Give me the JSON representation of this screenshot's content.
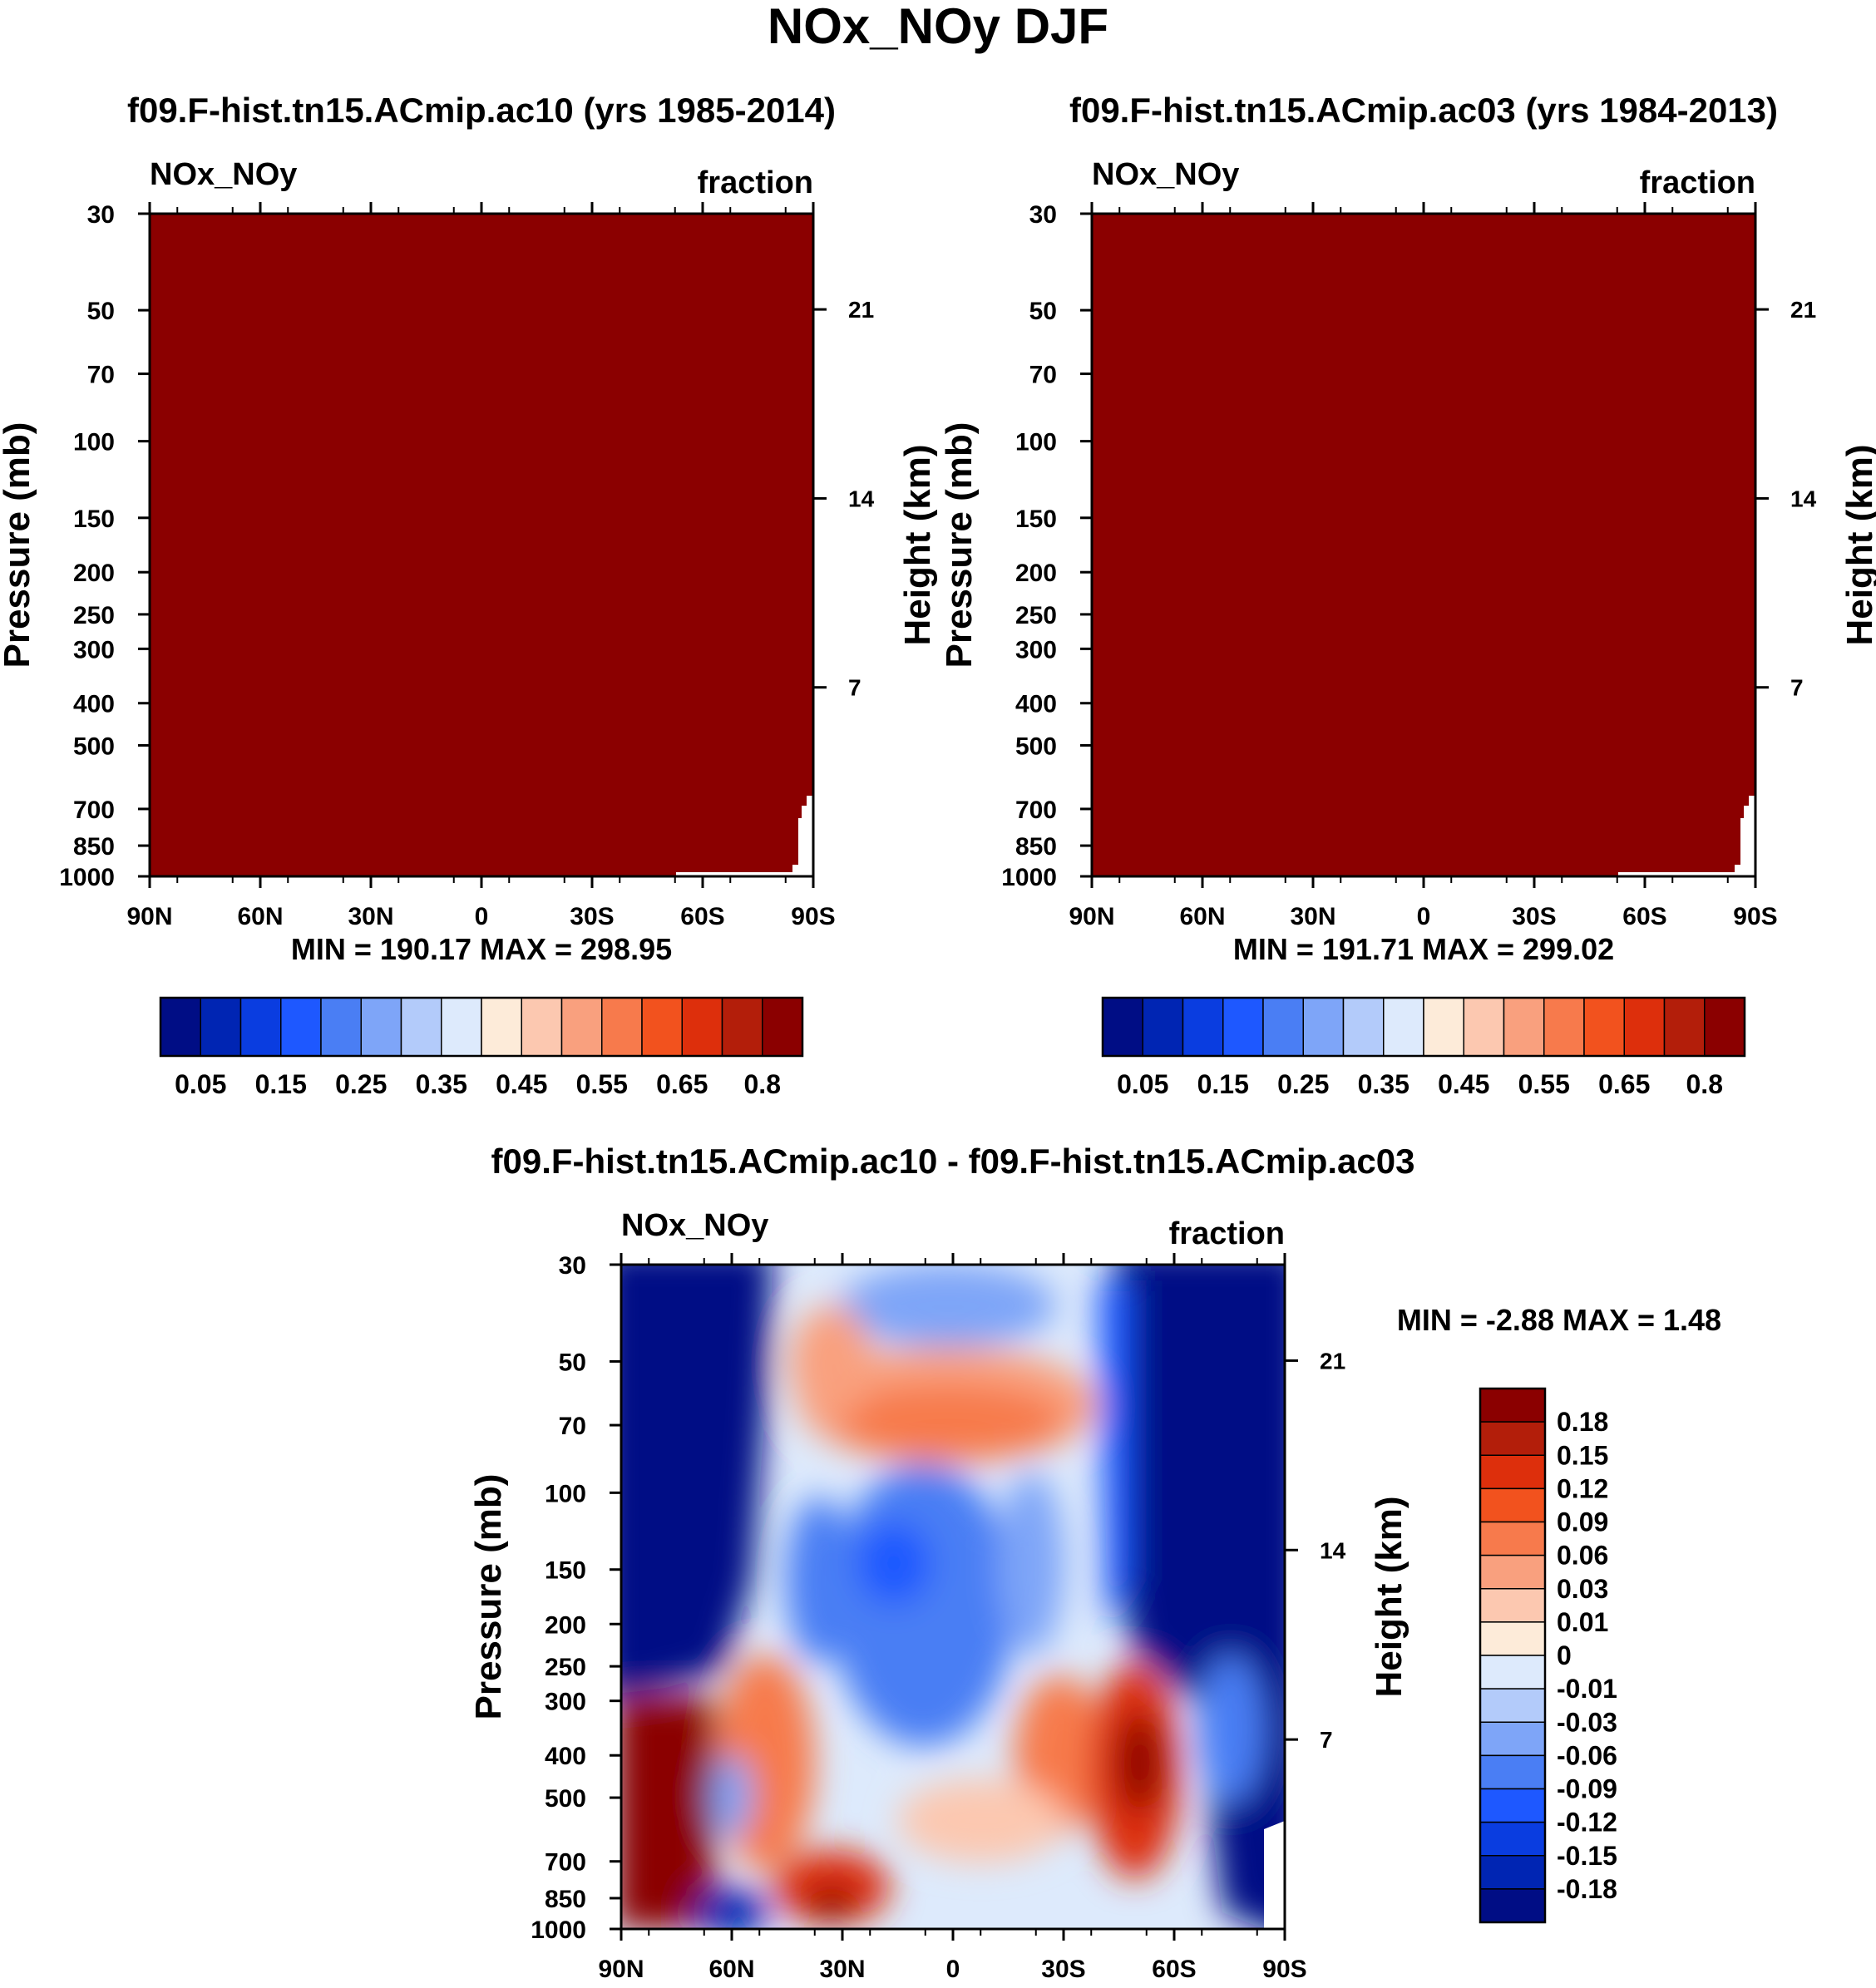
{
  "figure_title": "NOx_NOy DJF",
  "chart_data": [
    {
      "type": "heatmap",
      "panel": "top-left",
      "title": "f09.F-hist.tn15.ACmip.ac10 (yrs 1985-2014)",
      "variable": "NOx_NOy",
      "units": "fraction",
      "ylabel": "Pressure (mb)",
      "ylabel_right": "Height (km)",
      "xticks": [
        "90N",
        "60N",
        "30N",
        "0",
        "30S",
        "60S",
        "90S"
      ],
      "yticks": [
        "30",
        "50",
        "70",
        "100",
        "150",
        "200",
        "250",
        "300",
        "400",
        "500",
        "700",
        "850",
        "1000"
      ],
      "yticks_right": [
        "21",
        "14",
        "7"
      ],
      "stats": "MIN = 190.17  MAX = 298.95",
      "min": 190.17,
      "max": 298.95,
      "fill_color": "#8b0000",
      "colorbar_colors": [
        "#000d85",
        "#0025b3",
        "#0a3de0",
        "#1e58ff",
        "#4a7ef4",
        "#7ea5f8",
        "#b3cbfa",
        "#ddeafc",
        "#fdebd9",
        "#fcc8b0",
        "#f9a07e",
        "#f77a4c",
        "#f2521e",
        "#dd2f0c",
        "#b31e0a",
        "#8b0000"
      ],
      "colorbar_labels": [
        "0.05",
        "0.15",
        "0.25",
        "0.35",
        "0.45",
        "0.55",
        "0.65",
        "0.8"
      ]
    },
    {
      "type": "heatmap",
      "panel": "top-right",
      "title": "f09.F-hist.tn15.ACmip.ac03 (yrs 1984-2013)",
      "variable": "NOx_NOy",
      "units": "fraction",
      "ylabel": "Pressure (mb)",
      "ylabel_right": "Height (km)",
      "xticks": [
        "90N",
        "60N",
        "30N",
        "0",
        "30S",
        "60S",
        "90S"
      ],
      "yticks": [
        "30",
        "50",
        "70",
        "100",
        "150",
        "200",
        "250",
        "300",
        "400",
        "500",
        "700",
        "850",
        "1000"
      ],
      "yticks_right": [
        "21",
        "14",
        "7"
      ],
      "stats": "MIN = 191.71  MAX = 299.02",
      "min": 191.71,
      "max": 299.02,
      "fill_color": "#8b0000",
      "colorbar_colors": [
        "#000d85",
        "#0025b3",
        "#0a3de0",
        "#1e58ff",
        "#4a7ef4",
        "#7ea5f8",
        "#b3cbfa",
        "#ddeafc",
        "#fdebd9",
        "#fcc8b0",
        "#f9a07e",
        "#f77a4c",
        "#f2521e",
        "#dd2f0c",
        "#b31e0a",
        "#8b0000"
      ],
      "colorbar_labels": [
        "0.05",
        "0.15",
        "0.25",
        "0.35",
        "0.45",
        "0.55",
        "0.65",
        "0.8"
      ]
    },
    {
      "type": "heatmap",
      "panel": "bottom",
      "title": "f09.F-hist.tn15.ACmip.ac10 - f09.F-hist.tn15.ACmip.ac03",
      "variable": "NOx_NOy",
      "units": "fraction",
      "ylabel": "Pressure (mb)",
      "ylabel_right": "Height (km)",
      "xticks": [
        "90N",
        "60N",
        "30N",
        "0",
        "30S",
        "60S",
        "90S"
      ],
      "yticks": [
        "30",
        "50",
        "70",
        "100",
        "150",
        "200",
        "250",
        "300",
        "400",
        "500",
        "700",
        "850",
        "1000"
      ],
      "yticks_right": [
        "21",
        "14",
        "7"
      ],
      "stats": "MIN =  -2.88  MAX =   1.48",
      "min": -2.88,
      "max": 1.48,
      "levels": [
        "0.18",
        "0.15",
        "0.12",
        "0.09",
        "0.06",
        "0.03",
        "0.01",
        "0",
        "-0.01",
        "-0.03",
        "-0.06",
        "-0.09",
        "-0.12",
        "-0.15",
        "-0.18"
      ],
      "colorbar_colors": [
        "#8b0000",
        "#b31e0a",
        "#dd2f0c",
        "#f2521e",
        "#f77a4c",
        "#f9a07e",
        "#fcc8b0",
        "#fdebd9",
        "#ddeafc",
        "#b3cbfa",
        "#7ea5f8",
        "#4a7ef4",
        "#1e58ff",
        "#0a3de0",
        "#0025b3",
        "#000d85"
      ]
    }
  ]
}
